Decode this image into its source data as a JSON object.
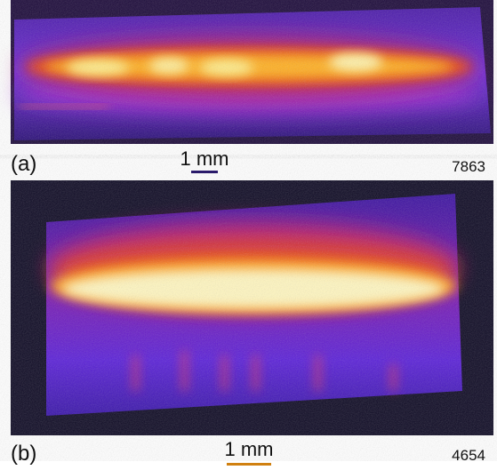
{
  "panels": [
    {
      "label": "(a)",
      "scale": "1 mm",
      "number": 7863
    },
    {
      "label": "(b)",
      "scale": "1 mm",
      "number": 4654
    }
  ]
}
